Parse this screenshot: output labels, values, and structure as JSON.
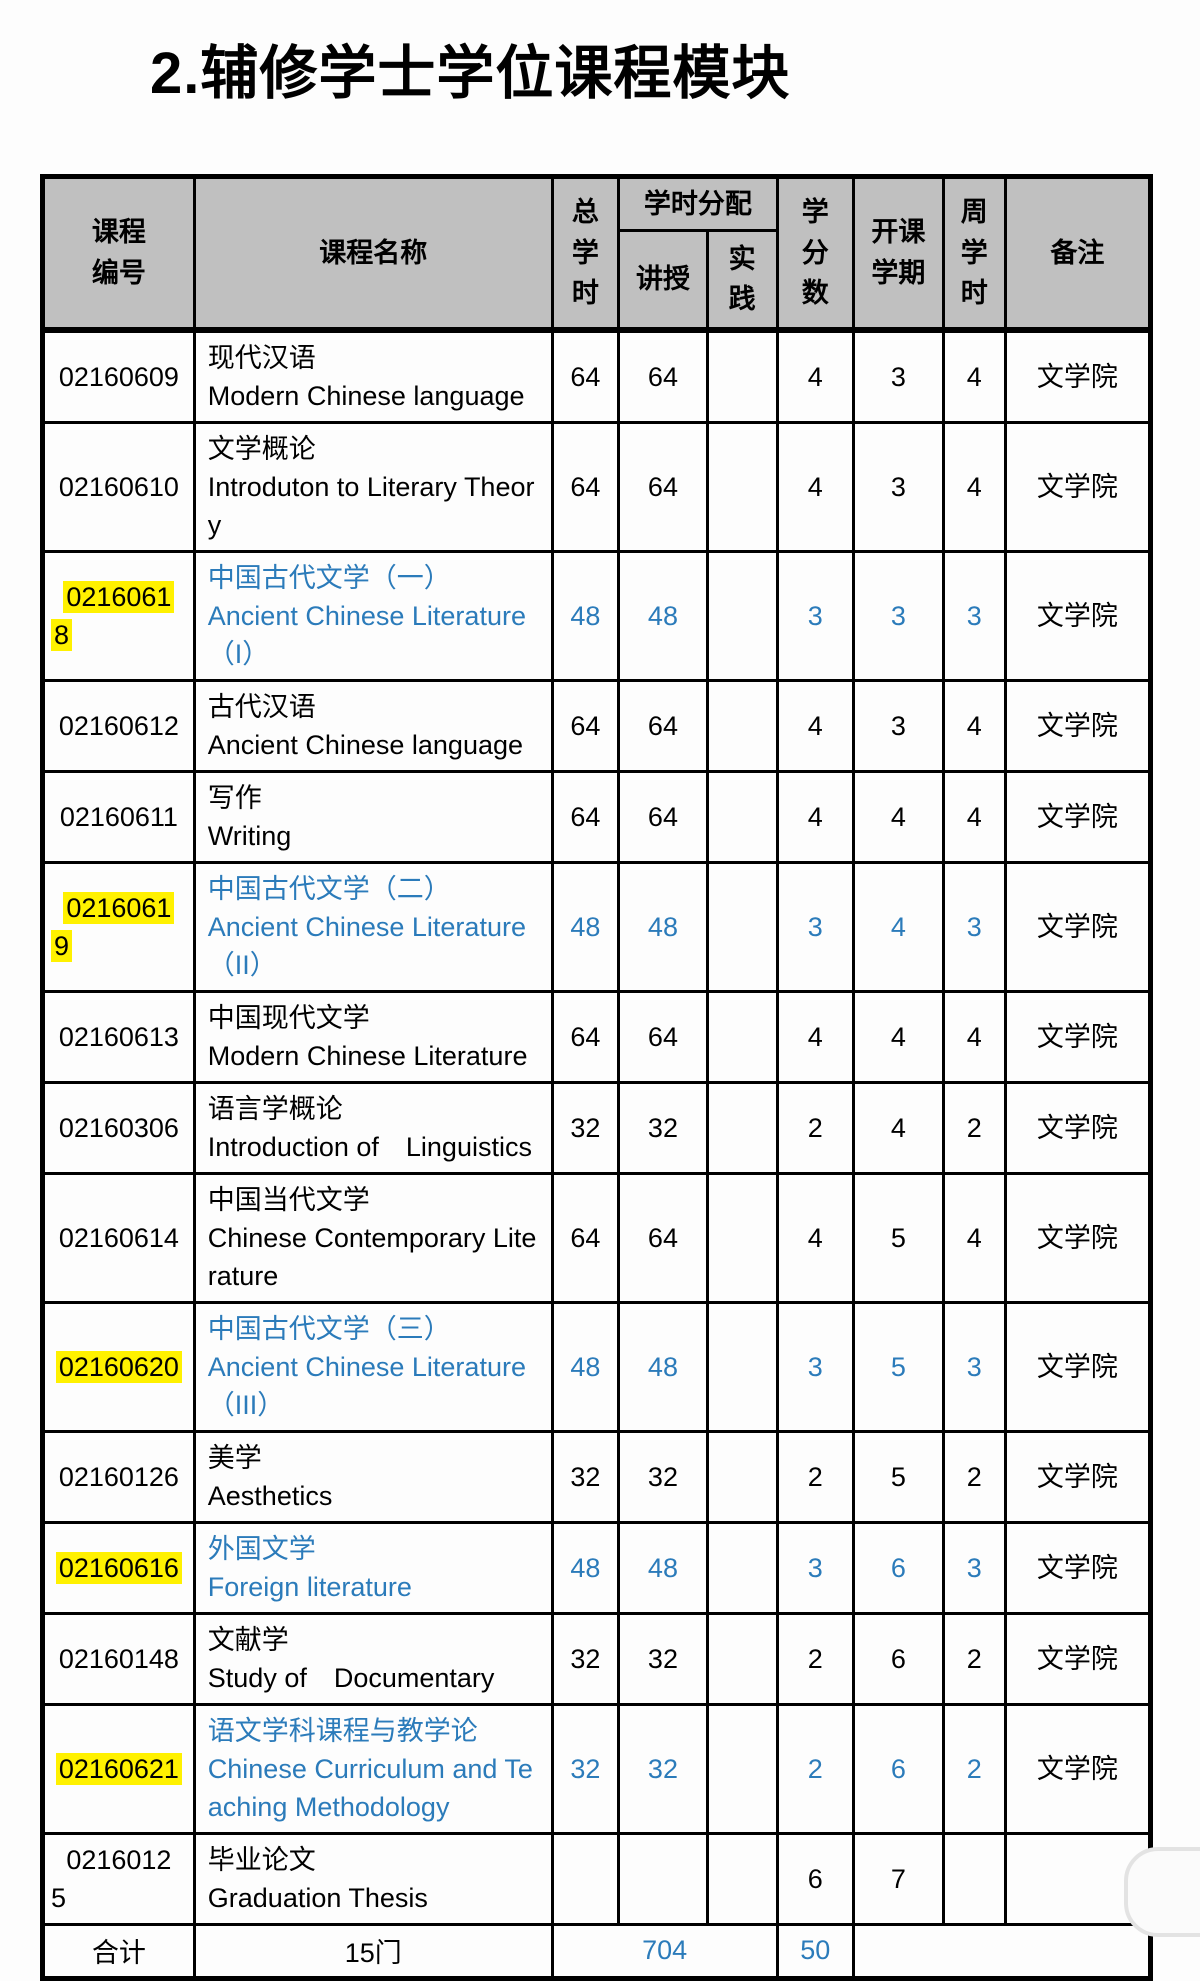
{
  "page": {
    "title": "2.辅修学士学位课程模块"
  },
  "colors": {
    "accent_blue": "#2b7bba",
    "highlight_yellow": "#fff100",
    "header_bg": "#c0c0c0",
    "border": "#000000"
  },
  "table": {
    "headers": {
      "code": "课程\n编号",
      "name": "课程名称",
      "total_hours": "总\n学\n时",
      "hours_allocation": "学时分配",
      "lecture": "讲授",
      "practice": "实\n践",
      "credits": "学\n分\n数",
      "semester": "开课\n学期",
      "weekly_hours": "周\n学\n时",
      "note": "备注"
    },
    "rows": [
      {
        "code_lines": [
          "02160609"
        ],
        "highlighted": false,
        "blue": false,
        "name_zh": "现代汉语",
        "name_en": "Modern Chinese language",
        "total_hours": "64",
        "lecture": "64",
        "practice": "",
        "credits": "4",
        "semester": "3",
        "weekly_hours": "4",
        "note": "文学院"
      },
      {
        "code_lines": [
          "02160610"
        ],
        "highlighted": false,
        "blue": false,
        "name_zh": "文学概论",
        "name_en": "Introduton to Literary Theory",
        "total_hours": "64",
        "lecture": "64",
        "practice": "",
        "credits": "4",
        "semester": "3",
        "weekly_hours": "4",
        "note": "文学院"
      },
      {
        "code_lines": [
          "0216061",
          "8"
        ],
        "highlighted": true,
        "blue": true,
        "name_zh": "中国古代文学（一）",
        "name_en": "Ancient Chinese Literature （I）",
        "total_hours": "48",
        "lecture": "48",
        "practice": "",
        "credits": "3",
        "semester": "3",
        "weekly_hours": "3",
        "note": "文学院"
      },
      {
        "code_lines": [
          "02160612"
        ],
        "highlighted": false,
        "blue": false,
        "name_zh": "古代汉语",
        "name_en": "Ancient Chinese language",
        "total_hours": "64",
        "lecture": "64",
        "practice": "",
        "credits": "4",
        "semester": "3",
        "weekly_hours": "4",
        "note": "文学院"
      },
      {
        "code_lines": [
          "02160611"
        ],
        "highlighted": false,
        "blue": false,
        "name_zh": "写作",
        "name_en": "Writing",
        "total_hours": "64",
        "lecture": "64",
        "practice": "",
        "credits": "4",
        "semester": "4",
        "weekly_hours": "4",
        "note": "文学院"
      },
      {
        "code_lines": [
          "0216061",
          "9"
        ],
        "highlighted": true,
        "blue": true,
        "name_zh": "中国古代文学（二）",
        "name_en": "Ancient Chinese Literature（II）",
        "total_hours": "48",
        "lecture": "48",
        "practice": "",
        "credits": "3",
        "semester": "4",
        "weekly_hours": "3",
        "note": "文学院"
      },
      {
        "code_lines": [
          "02160613"
        ],
        "highlighted": false,
        "blue": false,
        "name_zh": "中国现代文学",
        "name_en": "Modern Chinese Literature",
        "total_hours": "64",
        "lecture": "64",
        "practice": "",
        "credits": "4",
        "semester": "4",
        "weekly_hours": "4",
        "note": "文学院"
      },
      {
        "code_lines": [
          "02160306"
        ],
        "highlighted": false,
        "blue": false,
        "name_zh": "语言学概论",
        "name_en": "Introduction of　Linguistics",
        "total_hours": "32",
        "lecture": "32",
        "practice": "",
        "credits": "2",
        "semester": "4",
        "weekly_hours": "2",
        "note": "文学院"
      },
      {
        "code_lines": [
          "02160614"
        ],
        "highlighted": false,
        "blue": false,
        "name_zh": "中国当代文学",
        "name_en": "Chinese Contemporary Literature",
        "total_hours": "64",
        "lecture": "64",
        "practice": "",
        "credits": "4",
        "semester": "5",
        "weekly_hours": "4",
        "note": "文学院"
      },
      {
        "code_lines": [
          "02160620"
        ],
        "highlighted": true,
        "blue": true,
        "name_zh": "中国古代文学（三）",
        "name_en": "Ancient Chinese Literature（III）",
        "total_hours": "48",
        "lecture": "48",
        "practice": "",
        "credits": "3",
        "semester": "5",
        "weekly_hours": "3",
        "note": "文学院"
      },
      {
        "code_lines": [
          "02160126"
        ],
        "highlighted": false,
        "blue": false,
        "name_zh": "美学",
        "name_en": "Aesthetics",
        "total_hours": "32",
        "lecture": "32",
        "practice": "",
        "credits": "2",
        "semester": "5",
        "weekly_hours": "2",
        "note": "文学院"
      },
      {
        "code_lines": [
          "02160616"
        ],
        "highlighted": true,
        "blue": true,
        "name_zh": "外国文学",
        "name_en": "Foreign literature",
        "total_hours": "48",
        "lecture": "48",
        "practice": "",
        "credits": "3",
        "semester": "6",
        "weekly_hours": "3",
        "note": "文学院"
      },
      {
        "code_lines": [
          "02160148"
        ],
        "highlighted": false,
        "blue": false,
        "name_zh": "文献学",
        "name_en": "Study of　Documentary",
        "total_hours": "32",
        "lecture": "32",
        "practice": "",
        "credits": "2",
        "semester": "6",
        "weekly_hours": "2",
        "note": "文学院"
      },
      {
        "code_lines": [
          "02160621"
        ],
        "highlighted": true,
        "blue": true,
        "name_zh": "语文学科课程与教学论",
        "name_en": "Chinese Curriculum and Teaching Methodology",
        "total_hours": "32",
        "lecture": "32",
        "practice": "",
        "credits": "2",
        "semester": "6",
        "weekly_hours": "2",
        "note": "文学院"
      },
      {
        "code_lines": [
          "0216012",
          "5"
        ],
        "highlighted": false,
        "blue": false,
        "name_zh": "毕业论文",
        "name_en": "Graduation Thesis",
        "total_hours": "",
        "lecture": "",
        "practice": "",
        "credits": "6",
        "semester": "7",
        "weekly_hours": "",
        "note": ""
      }
    ],
    "footer": {
      "label": "合计",
      "course_count": "15门",
      "total_hours": "704",
      "total_credits": "50"
    }
  }
}
